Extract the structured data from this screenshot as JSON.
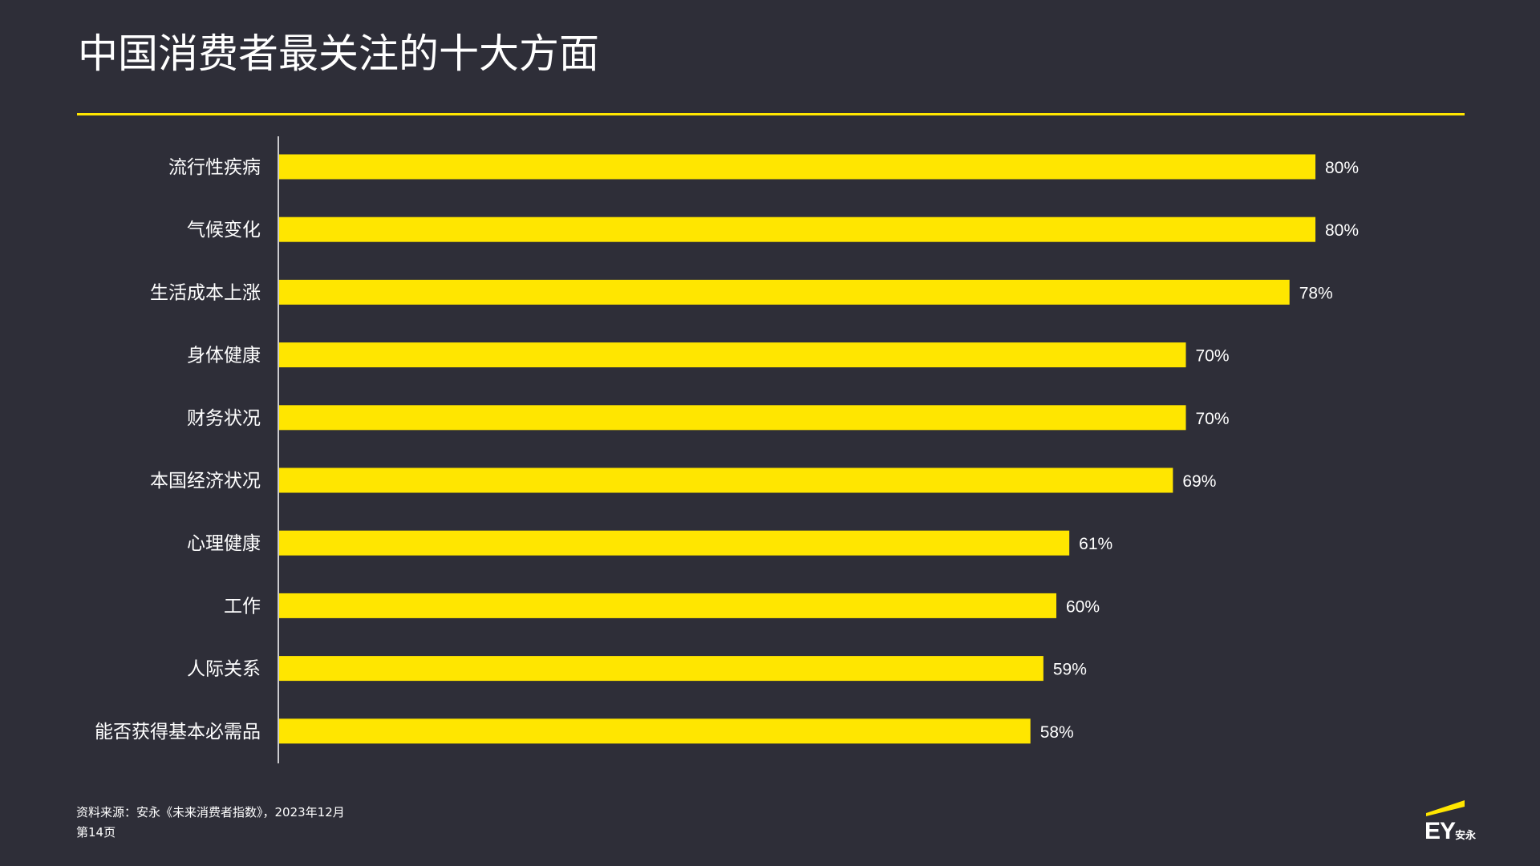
{
  "slide": {
    "title": "中国消费者最关注的十大方面",
    "source": "资料来源：安永《未来消费者指数》，2023年12月",
    "page": "第14页",
    "logo": {
      "mark": "EY",
      "name": "安永"
    }
  },
  "colors": {
    "background": "#2e2e38",
    "accent": "#ffe600",
    "text": "#ffffff"
  },
  "chart_data": {
    "type": "bar",
    "orientation": "horizontal",
    "categories": [
      "流行性疾病",
      "气候变化",
      "生活成本上涨",
      "身体健康",
      "财务状况",
      "本国经济状况",
      "心理健康",
      "工作",
      "人际关系",
      "能否获得基本必需品"
    ],
    "values": [
      80,
      80,
      78,
      70,
      70,
      69,
      61,
      60,
      59,
      58
    ],
    "value_labels": [
      "80%",
      "80%",
      "78%",
      "70%",
      "70%",
      "69%",
      "61%",
      "60%",
      "59%",
      "58%"
    ],
    "xlim": [
      0,
      100
    ],
    "grid": false,
    "legend": "none"
  }
}
